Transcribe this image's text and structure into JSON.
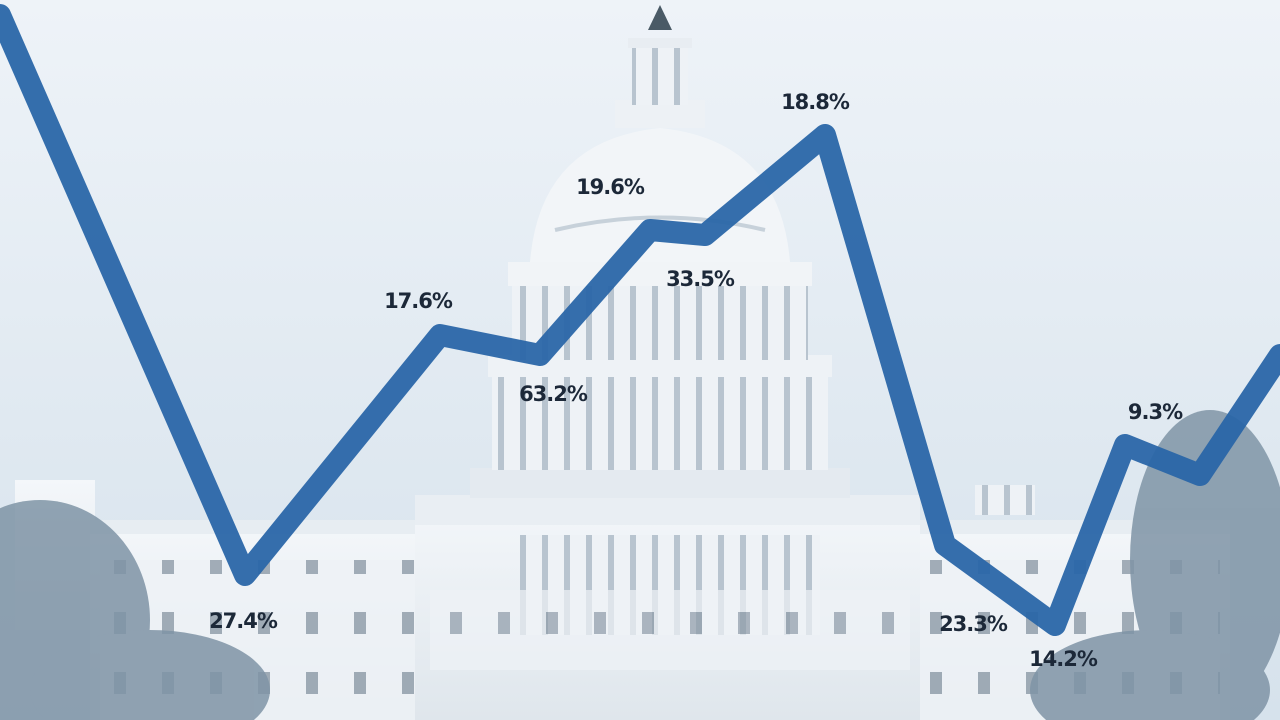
{
  "annotations": [
    "18.8%",
    "19.6%",
    "17.6%",
    "33.5%",
    "63.2%",
    "27.4%",
    "23.3%",
    "14.2%",
    "9.3%"
  ]
}
